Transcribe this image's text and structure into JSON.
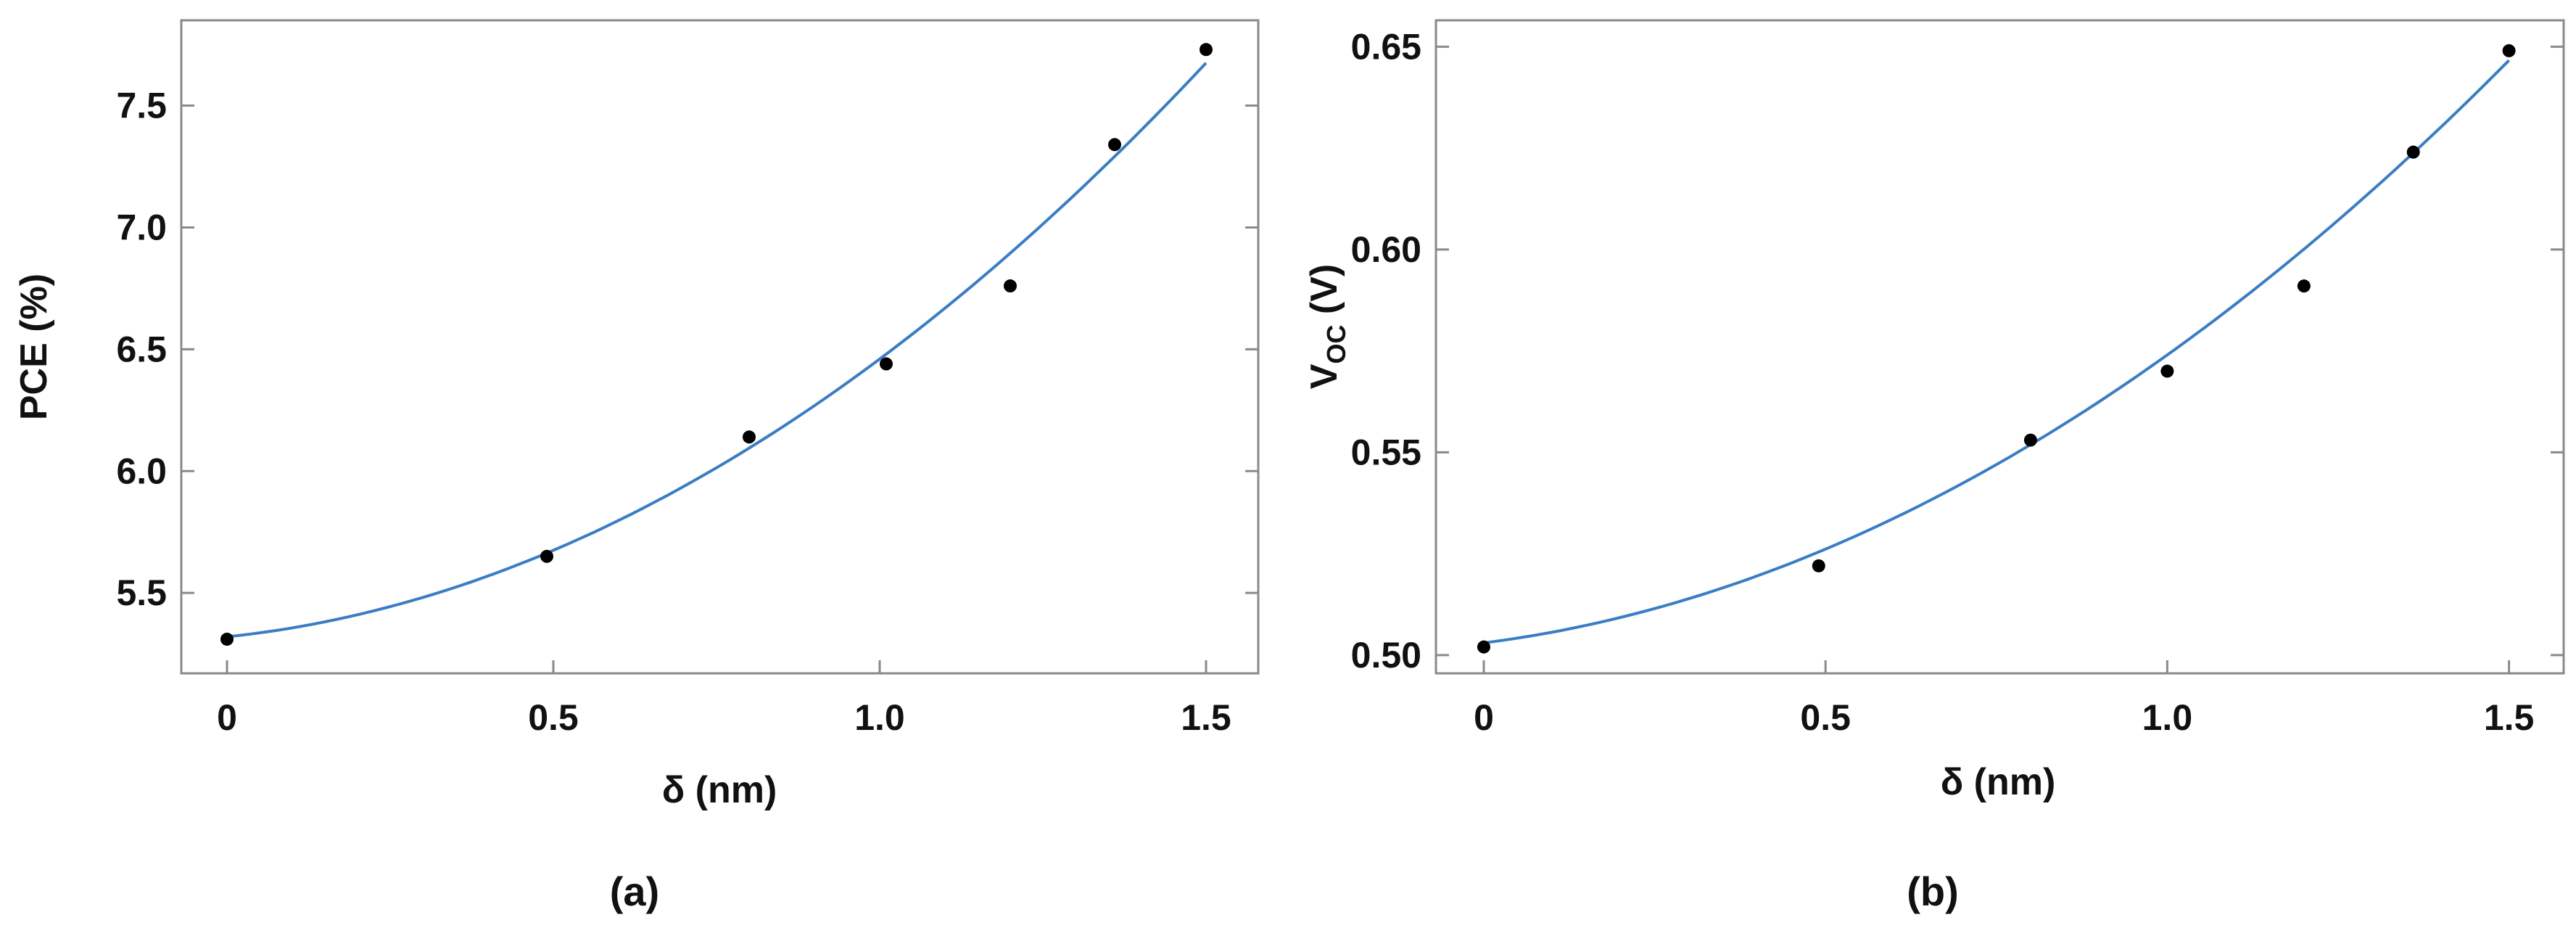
{
  "chart_data": [
    {
      "type": "scatter",
      "panel_label": "(a)",
      "xlabel": "δ (nm)",
      "ylabel": "PCE (%)",
      "ylabel_sub": "",
      "ylabel_tail": "",
      "xlim": [
        -0.07,
        1.58
      ],
      "ylim": [
        5.17,
        7.85
      ],
      "xticks": [
        0,
        0.5,
        1.0,
        1.5
      ],
      "xtick_labels": [
        "0",
        "0.5",
        "1.0",
        "1.5"
      ],
      "yticks": [
        5.5,
        6.0,
        6.5,
        7.0,
        7.5
      ],
      "ytick_labels": [
        "5.5",
        "6.0",
        "6.5",
        "7.0",
        "7.5"
      ],
      "series": [
        {
          "x": [
            0.0,
            0.49,
            0.8,
            1.01,
            1.2,
            1.36,
            1.5
          ],
          "y": [
            5.31,
            5.65,
            6.14,
            6.44,
            6.76,
            7.34,
            7.73
          ]
        }
      ],
      "fit": {
        "type": "quadratic",
        "coefficients": [
          5.32,
          0.28,
          0.86
        ],
        "x_range": [
          0,
          1.5
        ]
      },
      "colors": {
        "points": "#000000",
        "fit": "#3b7dc4"
      }
    },
    {
      "type": "scatter",
      "panel_label": "(b)",
      "xlabel": "δ (nm)",
      "ylabel": "V",
      "ylabel_sub": "OC",
      "ylabel_tail": " (V)",
      "xlim": [
        -0.07,
        1.58
      ],
      "ylim": [
        0.4955,
        0.6565
      ],
      "xticks": [
        0,
        0.5,
        1.0,
        1.5
      ],
      "xtick_labels": [
        "0",
        "0.5",
        "1.0",
        "1.5"
      ],
      "yticks": [
        0.5,
        0.55,
        0.6,
        0.65
      ],
      "ytick_labels": [
        "0.50",
        "0.55",
        "0.60",
        "0.65"
      ],
      "series": [
        {
          "x": [
            0.0,
            0.49,
            0.8,
            1.0,
            1.2,
            1.36,
            1.5
          ],
          "y": [
            0.502,
            0.522,
            0.553,
            0.57,
            0.591,
            0.624,
            0.649
          ]
        }
      ],
      "fit": {
        "type": "quadratic",
        "coefficients": [
          0.503,
          0.0215,
          0.0495
        ],
        "x_range": [
          0,
          1.5
        ]
      },
      "colors": {
        "points": "#000000",
        "fit": "#3b7dc4"
      }
    }
  ]
}
